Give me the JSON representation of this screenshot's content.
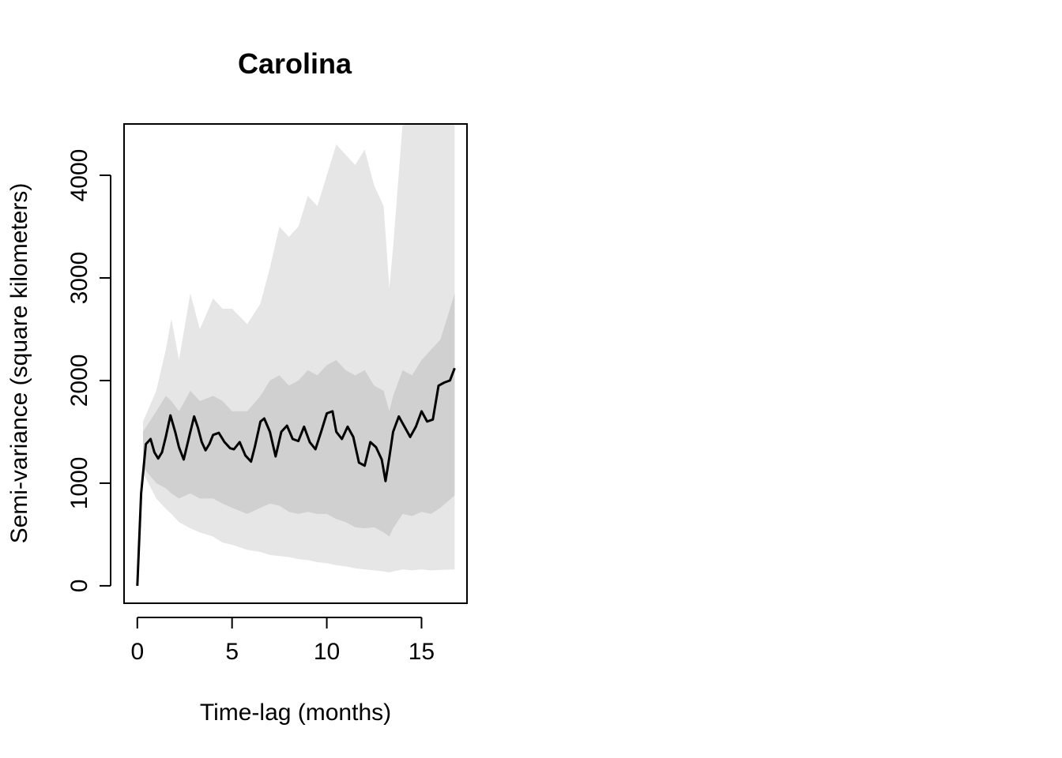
{
  "chart_data": {
    "type": "line",
    "title": "Carolina",
    "xlabel": "Time-lag (months)",
    "ylabel": "Semi-variance (square kilometers)",
    "xlim": [
      -0.7,
      17.4
    ],
    "ylim": [
      -170,
      4500
    ],
    "x_ticks": [
      0,
      5,
      10,
      15
    ],
    "y_ticks": [
      0,
      1000,
      2000,
      3000,
      4000
    ],
    "colors": {
      "outer_band": "#e6e6e6",
      "inner_band": "#d0d0d0",
      "line": "#000000"
    },
    "series": [
      {
        "name": "semi-variance",
        "x": [
          0,
          0.2,
          0.45,
          0.7,
          0.9,
          1.1,
          1.3,
          1.5,
          1.75,
          2.0,
          2.2,
          2.45,
          2.8,
          3.0,
          3.2,
          3.4,
          3.6,
          3.8,
          4.0,
          4.3,
          4.6,
          4.9,
          5.1,
          5.4,
          5.7,
          6.0,
          6.2,
          6.5,
          6.7,
          7.0,
          7.3,
          7.6,
          7.9,
          8.2,
          8.5,
          8.8,
          9.1,
          9.4,
          9.7,
          10.0,
          10.3,
          10.5,
          10.8,
          11.1,
          11.4,
          11.7,
          12.0,
          12.3,
          12.6,
          12.9,
          13.1,
          13.3,
          13.5,
          13.8,
          14.1,
          14.4,
          14.7,
          15.0,
          15.3,
          15.6,
          15.9,
          16.2,
          16.5,
          16.75
        ],
        "y": [
          0,
          900,
          1380,
          1430,
          1300,
          1240,
          1300,
          1450,
          1660,
          1500,
          1350,
          1230,
          1500,
          1650,
          1540,
          1400,
          1320,
          1380,
          1470,
          1490,
          1400,
          1340,
          1330,
          1400,
          1270,
          1210,
          1350,
          1600,
          1630,
          1500,
          1260,
          1500,
          1560,
          1430,
          1410,
          1550,
          1400,
          1330,
          1500,
          1680,
          1700,
          1500,
          1430,
          1550,
          1450,
          1200,
          1170,
          1400,
          1350,
          1230,
          1020,
          1250,
          1500,
          1650,
          1550,
          1450,
          1550,
          1700,
          1600,
          1620,
          1950,
          1980,
          2000,
          2120
        ]
      }
    ],
    "bands": {
      "x": [
        0.3,
        1.0,
        1.5,
        1.8,
        2.2,
        2.8,
        3.3,
        4.0,
        4.5,
        5.0,
        5.8,
        6.5,
        7.0,
        7.5,
        8.0,
        8.5,
        9.0,
        9.5,
        10.0,
        10.5,
        11.0,
        11.5,
        12.0,
        12.5,
        13.0,
        13.3,
        13.5,
        14.0,
        14.5,
        15.0,
        15.5,
        16.0,
        16.75
      ],
      "outer_upper": [
        1600,
        1900,
        2300,
        2600,
        2200,
        2850,
        2500,
        2800,
        2700,
        2700,
        2550,
        2750,
        3100,
        3500,
        3400,
        3500,
        3800,
        3700,
        4000,
        4300,
        4200,
        4100,
        4250,
        3900,
        3700,
        2900,
        3300,
        4500,
        4500,
        4500,
        4500,
        4500,
        4500
      ],
      "inner_upper": [
        1500,
        1700,
        1850,
        1800,
        1700,
        1900,
        1800,
        1850,
        1800,
        1700,
        1700,
        1850,
        2000,
        2050,
        1950,
        2000,
        2100,
        2050,
        2150,
        2200,
        2100,
        2050,
        2100,
        1950,
        1900,
        1700,
        1850,
        2100,
        2050,
        2200,
        2300,
        2400,
        2850
      ],
      "inner_lower": [
        1150,
        1000,
        950,
        900,
        850,
        900,
        850,
        850,
        800,
        760,
        700,
        760,
        800,
        780,
        720,
        700,
        720,
        700,
        700,
        650,
        620,
        570,
        560,
        570,
        520,
        480,
        560,
        700,
        680,
        720,
        700,
        760,
        880
      ],
      "outer_lower": [
        1100,
        850,
        750,
        700,
        620,
        560,
        520,
        480,
        420,
        400,
        350,
        330,
        300,
        290,
        280,
        260,
        250,
        230,
        220,
        200,
        190,
        170,
        160,
        150,
        140,
        130,
        140,
        160,
        150,
        160,
        150,
        155,
        160
      ]
    }
  }
}
